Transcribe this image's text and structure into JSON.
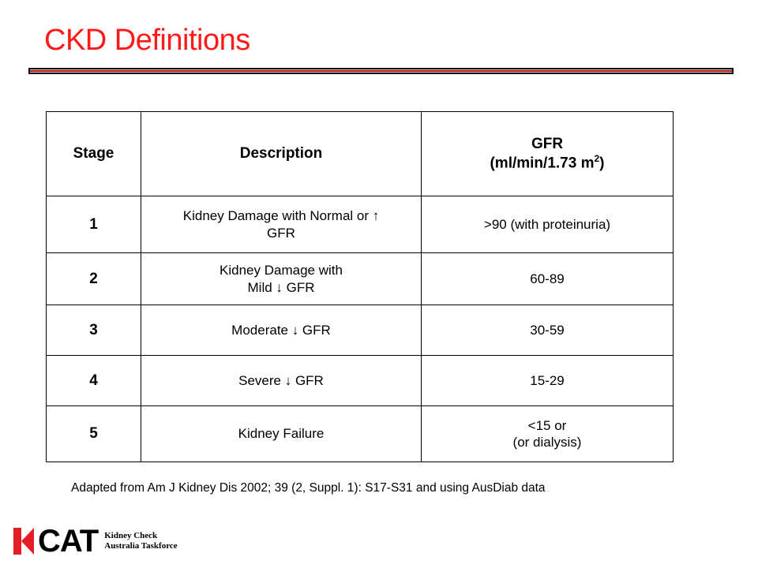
{
  "slide": {
    "title": "CKD  Definitions"
  },
  "table": {
    "headers": {
      "stage": "Stage",
      "description": "Description",
      "gfr_line1": "GFR",
      "gfr_line2_prefix": "(ml/min/1.73 m",
      "gfr_superscript": "2",
      "gfr_line2_suffix": ")"
    },
    "rows": [
      {
        "stage": "1",
        "desc_line1": "Kidney Damage with Normal or ↑",
        "desc_line2": "GFR",
        "gfr_line1": ">90 (with proteinuria)",
        "gfr_line2": ""
      },
      {
        "stage": "2",
        "desc_line1": "Kidney Damage with",
        "desc_line2": "Mild ↓ GFR",
        "gfr_line1": "60-89",
        "gfr_line2": ""
      },
      {
        "stage": "3",
        "desc_line1": "Moderate ↓ GFR",
        "desc_line2": "",
        "gfr_line1": "30-59",
        "gfr_line2": ""
      },
      {
        "stage": "4",
        "desc_line1": "Severe ↓ GFR",
        "desc_line2": "",
        "gfr_line1": "15-29",
        "gfr_line2": ""
      },
      {
        "stage": "5",
        "desc_line1": "Kidney Failure",
        "desc_line2": "",
        "gfr_line1": "<15 or",
        "gfr_line2": "(or dialysis)"
      }
    ]
  },
  "footnote": "Adapted from Am J Kidney Dis 2002; 39 (2, Suppl. 1): S17-S31 and using AusDiab data",
  "logo": {
    "wordmark": "CAT",
    "line1": "Kidney Check",
    "line2": "Australia Taskforce",
    "accent_color": "#e31e24"
  },
  "colors": {
    "title": "#ff1a1a",
    "rule": "#b41414"
  }
}
